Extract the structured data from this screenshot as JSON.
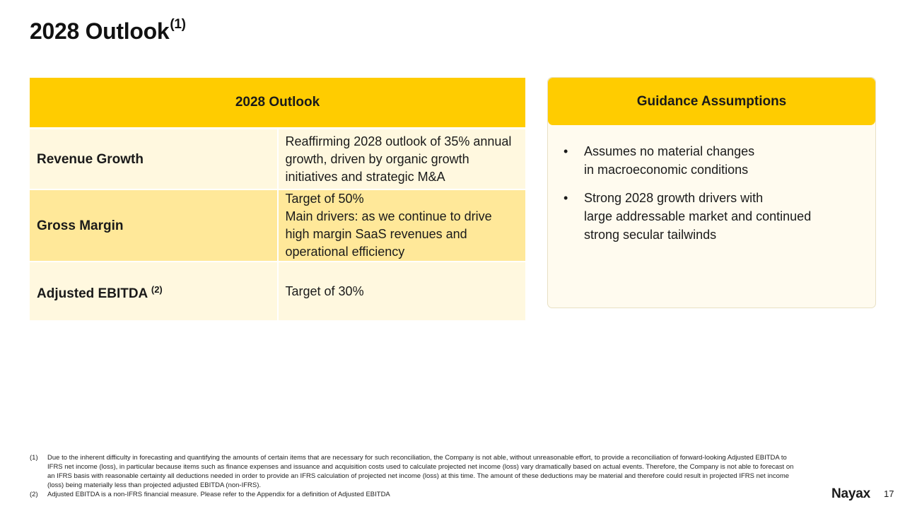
{
  "slide": {
    "title": "2028 Outlook",
    "title_footnote": "(1)"
  },
  "outlook_table": {
    "header": "2028 Outlook",
    "rows": [
      {
        "label": "Revenue Growth",
        "label_footnote": "",
        "value_lines": [
          "Reaffirming 2028 outlook of 35% annual growth, driven by organic growth initiatives and strategic M&A"
        ]
      },
      {
        "label": "Gross Margin",
        "label_footnote": "",
        "value_lines": [
          "Target of 50%",
          "Main drivers: as we continue to drive high margin SaaS revenues and operational efficiency"
        ]
      },
      {
        "label": "Adjusted EBITDA",
        "label_footnote": "(2)",
        "value_lines": [
          "Target of 30%"
        ]
      }
    ]
  },
  "guidance": {
    "header": "Guidance Assumptions",
    "bullet_symbol": "•",
    "items": [
      {
        "lines": [
          "Assumes no material changes",
          "in macroeconomic conditions"
        ]
      },
      {
        "lines": [
          "Strong 2028 growth drivers with",
          "large addressable market and continued",
          "strong secular tailwinds"
        ]
      }
    ]
  },
  "footnotes": [
    {
      "num": "(1)",
      "text": "Due to the inherent difficulty in forecasting and quantifying the amounts of certain items that are necessary for such reconciliation, the Company is not able, without unreasonable effort, to provide a reconciliation of forward-looking Adjusted EBITDA to IFRS net income (loss), in particular because items such as finance expenses and issuance and acquisition costs used to calculate projected net income (loss) vary dramatically based on actual events. Therefore, the Company is not able to forecast on an IFRS basis with reasonable certainty all deductions needed in order to provide an IFRS calculation of projected net income (loss) at this time. The amount of these deductions may be material and therefore could result in projected IFRS net income (loss) being materially less than projected adjusted EBITDA (non-IFRS)."
    },
    {
      "num": "(2)",
      "text": "Adjusted  EBITDA is a non-IFRS financial measure. Please refer to the Appendix for a definition of Adjusted EBITDA"
    }
  ],
  "brand": {
    "logo_text": "Nayax",
    "accent_color": "#ffcc00"
  },
  "page_number": "17",
  "colors": {
    "header_yellow": "#ffcc00",
    "row_light": "#fff8df",
    "row_mid": "#ffe899"
  }
}
